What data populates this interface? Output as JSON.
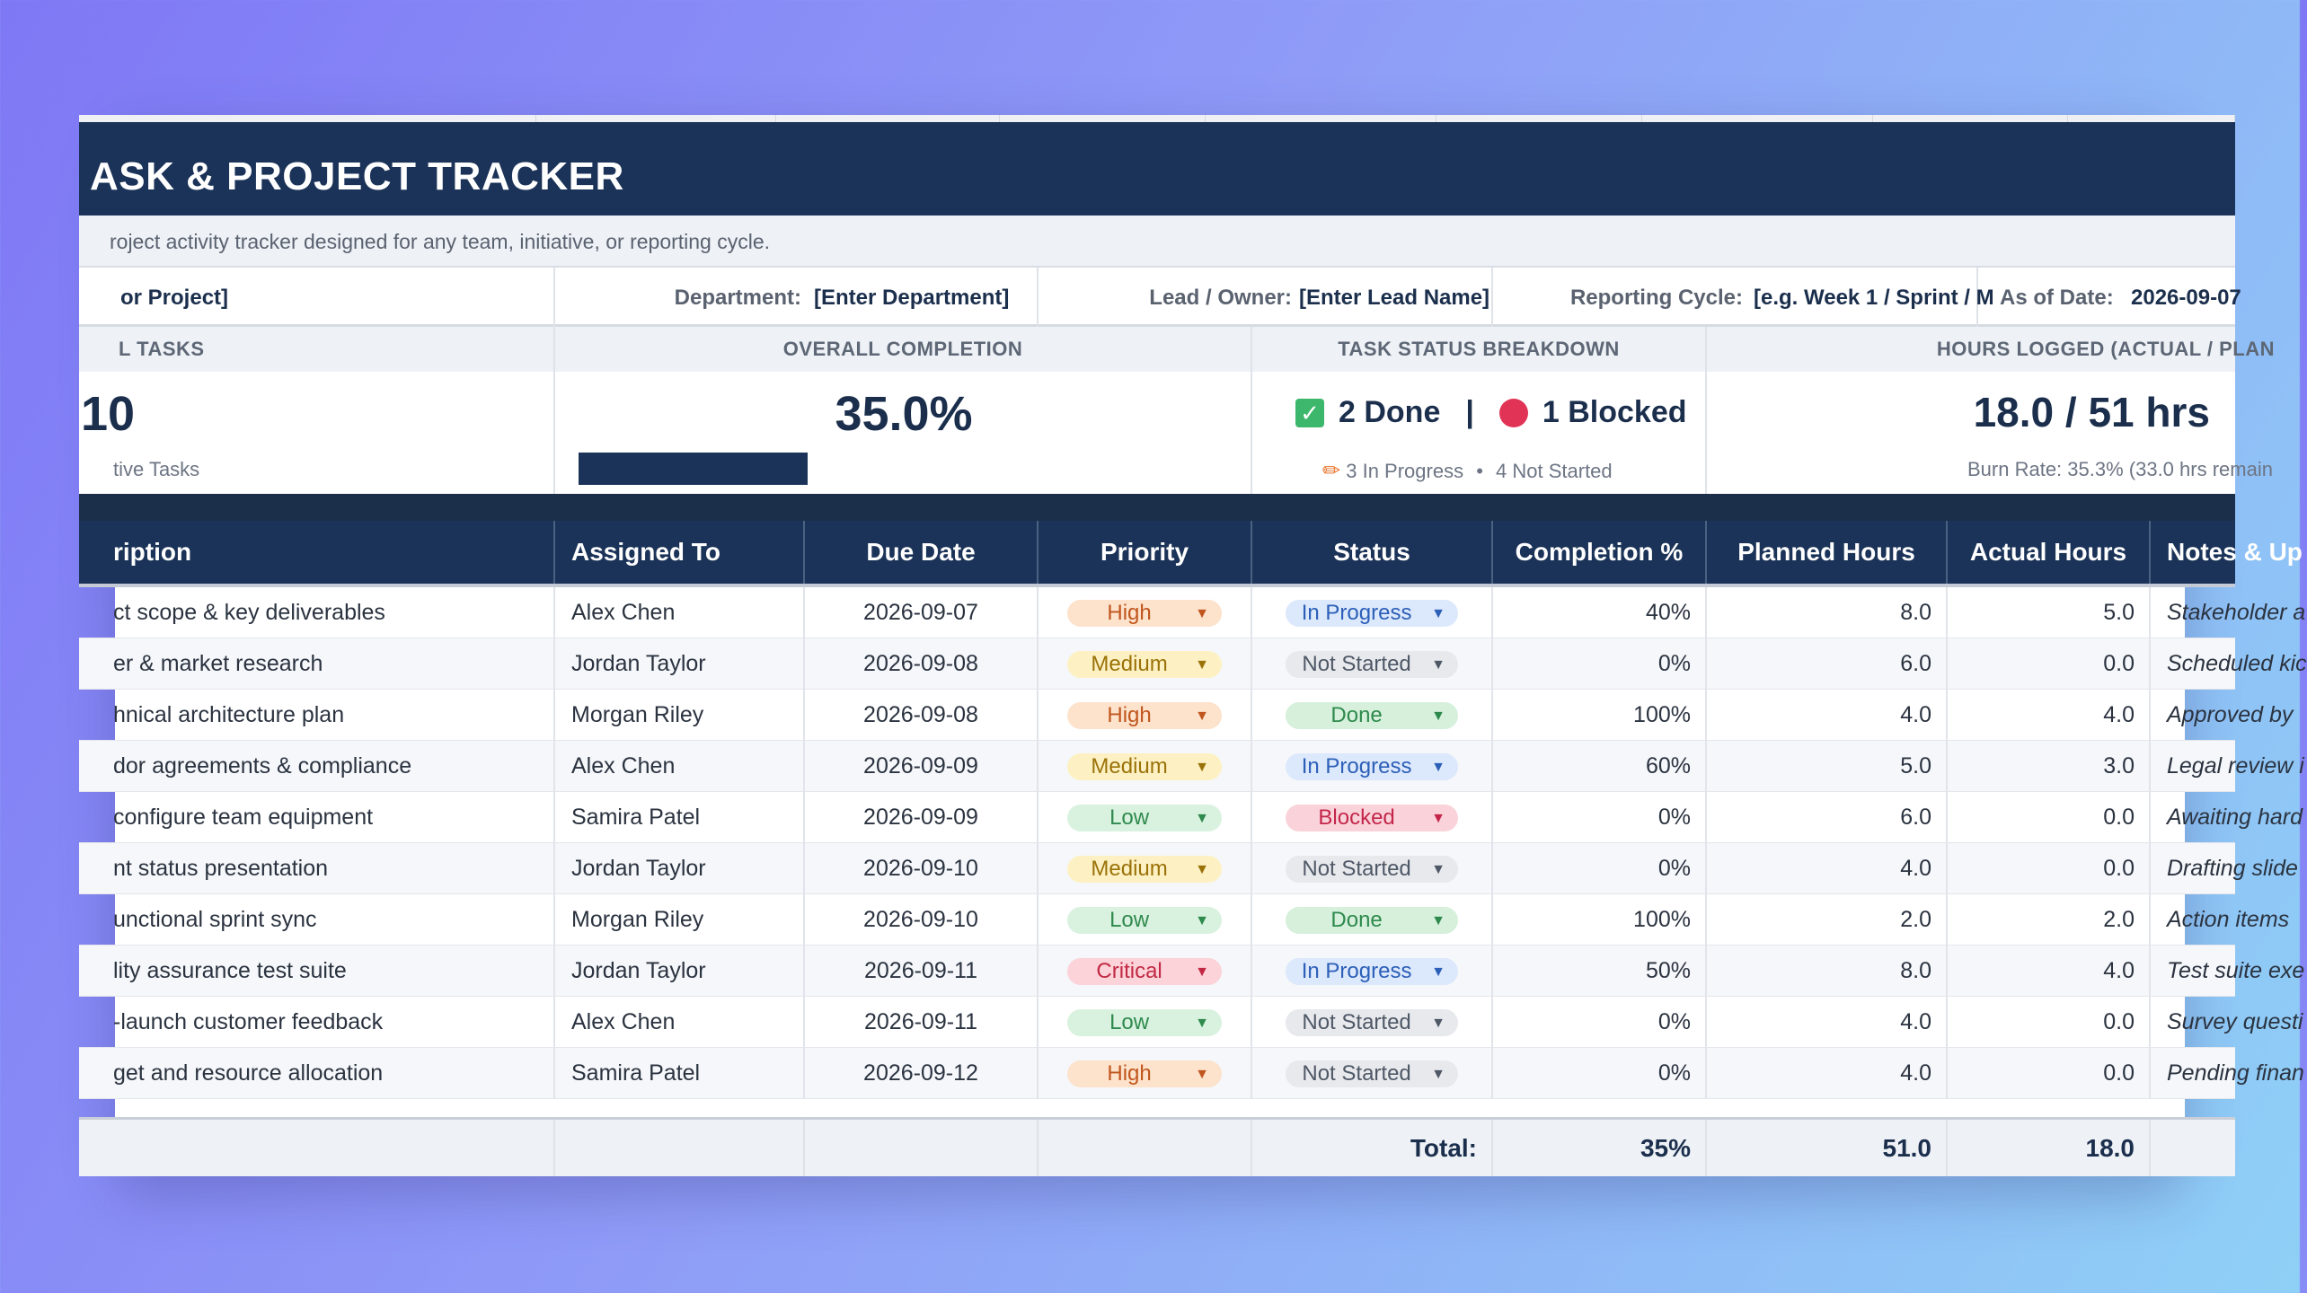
{
  "title": "ASK & PROJECT TRACKER",
  "subtitle": "roject activity tracker designed for any team, initiative, or reporting cycle.",
  "meta": {
    "project_value": "or Project]",
    "department_label": "Department:",
    "department_value": "[Enter Department]",
    "lead_label": "Lead / Owner:",
    "lead_value": "[Enter Lead Name]",
    "cycle_label": "Reporting Cycle:",
    "cycle_value": "[e.g. Week 1 / Sprint / M",
    "asof_label": "As of Date:",
    "asof_value": "2026-09-07"
  },
  "kpis": {
    "total_header": "L TASKS",
    "total_value": "10",
    "total_sub": "tive Tasks",
    "completion_header": "OVERALL COMPLETION",
    "completion_value": "35.0%",
    "completion_fraction": 0.35,
    "status_header": "TASK STATUS BREAKDOWN",
    "done_text": "2 Done",
    "divider": "|",
    "blocked_text": "1 Blocked",
    "in_progress_text": "3 In Progress",
    "bullet": "•",
    "not_started_text": "4 Not Started",
    "hours_header": "HOURS LOGGED (ACTUAL / PLAN",
    "hours_value": "18.0 / 51 hrs",
    "burn_text": "Burn Rate: 35.3% (33.0 hrs remain"
  },
  "columns": {
    "description": "ription",
    "assigned": "Assigned To",
    "due": "Due Date",
    "priority": "Priority",
    "status": "Status",
    "completion": "Completion %",
    "planned": "Planned Hours",
    "actual": "Actual Hours",
    "notes": "Notes & Up"
  },
  "priority_colors": {
    "High": {
      "bg": "#fde2cc",
      "fg": "#c0561d"
    },
    "Medium": {
      "bg": "#fdf1c4",
      "fg": "#9a7208"
    },
    "Low": {
      "bg": "#d9f2df",
      "fg": "#2f8a4e"
    },
    "Critical": {
      "bg": "#fbd3d9",
      "fg": "#c22843"
    }
  },
  "status_colors": {
    "In Progress": {
      "bg": "#dce8fb",
      "fg": "#2c5fb8"
    },
    "Not Started": {
      "bg": "#e7e9ed",
      "fg": "#4f5866"
    },
    "Done": {
      "bg": "#d6f0dc",
      "fg": "#2e8a4c"
    },
    "Blocked": {
      "bg": "#fad3da",
      "fg": "#c3264a"
    }
  },
  "rows": [
    {
      "description": "ct scope & key deliverables",
      "assigned": "Alex Chen",
      "due": "2026-09-07",
      "priority": "High",
      "status": "In Progress",
      "completion": "40%",
      "planned": "8.0",
      "actual": "5.0",
      "notes": "Stakeholder a"
    },
    {
      "description": "er & market research",
      "assigned": "Jordan Taylor",
      "due": "2026-09-08",
      "priority": "Medium",
      "status": "Not Started",
      "completion": "0%",
      "planned": "6.0",
      "actual": "0.0",
      "notes": "Scheduled kic"
    },
    {
      "description": "hnical architecture plan",
      "assigned": "Morgan Riley",
      "due": "2026-09-08",
      "priority": "High",
      "status": "Done",
      "completion": "100%",
      "planned": "4.0",
      "actual": "4.0",
      "notes": "Approved by"
    },
    {
      "description": "dor agreements & compliance",
      "assigned": "Alex Chen",
      "due": "2026-09-09",
      "priority": "Medium",
      "status": "In Progress",
      "completion": "60%",
      "planned": "5.0",
      "actual": "3.0",
      "notes": "Legal review i"
    },
    {
      "description": "configure team equipment",
      "assigned": "Samira Patel",
      "due": "2026-09-09",
      "priority": "Low",
      "status": "Blocked",
      "completion": "0%",
      "planned": "6.0",
      "actual": "0.0",
      "notes": "Awaiting hard"
    },
    {
      "description": "nt status presentation",
      "assigned": "Jordan Taylor",
      "due": "2026-09-10",
      "priority": "Medium",
      "status": "Not Started",
      "completion": "0%",
      "planned": "4.0",
      "actual": "0.0",
      "notes": "Drafting slide"
    },
    {
      "description": "unctional sprint sync",
      "assigned": "Morgan Riley",
      "due": "2026-09-10",
      "priority": "Low",
      "status": "Done",
      "completion": "100%",
      "planned": "2.0",
      "actual": "2.0",
      "notes": "Action items"
    },
    {
      "description": "lity assurance test suite",
      "assigned": "Jordan Taylor",
      "due": "2026-09-11",
      "priority": "Critical",
      "status": "In Progress",
      "completion": "50%",
      "planned": "8.0",
      "actual": "4.0",
      "notes": "Test suite exe"
    },
    {
      "description": "-launch customer feedback",
      "assigned": "Alex Chen",
      "due": "2026-09-11",
      "priority": "Low",
      "status": "Not Started",
      "completion": "0%",
      "planned": "4.0",
      "actual": "0.0",
      "notes": "Survey questi"
    },
    {
      "description": "get and resource allocation",
      "assigned": "Samira Patel",
      "due": "2026-09-12",
      "priority": "High",
      "status": "Not Started",
      "completion": "0%",
      "planned": "4.0",
      "actual": "0.0",
      "notes": "Pending finan"
    }
  ],
  "totals": {
    "label": "Total:",
    "completion": "35%",
    "planned": "51.0",
    "actual": "18.0"
  }
}
